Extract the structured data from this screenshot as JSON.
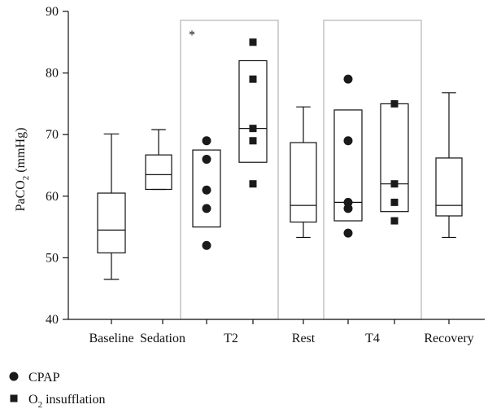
{
  "chart_data": {
    "type": "box",
    "ylabel_main": "PaCO",
    "ylabel_sub": "2",
    "ylabel_unit": " (mmHg)",
    "ylim": [
      40,
      90
    ],
    "yticks": [
      40,
      50,
      60,
      70,
      80,
      90
    ],
    "categories": [
      "Baseline",
      "Sedation",
      "T2",
      "Rest",
      "T4",
      "Recovery"
    ],
    "annotation": "*",
    "boxes": [
      {
        "name": "Baseline",
        "whisker_low": 46.5,
        "q1": 50.8,
        "median": 54.5,
        "q3": 60.5,
        "whisker_high": 70.1
      },
      {
        "name": "Sedation",
        "whisker_low": 61.1,
        "q1": 61.1,
        "median": 63.5,
        "q3": 66.7,
        "whisker_high": 70.8
      },
      {
        "name": "T2-CPAP",
        "whisker_low": null,
        "q1": 55.0,
        "median": null,
        "q3": 67.5,
        "whisker_high": null
      },
      {
        "name": "T2-O2",
        "whisker_low": null,
        "q1": 65.5,
        "median": 71.0,
        "q3": 82.0,
        "whisker_high": null
      },
      {
        "name": "Rest",
        "whisker_low": 53.3,
        "q1": 55.8,
        "median": 58.5,
        "q3": 68.7,
        "whisker_high": 74.5
      },
      {
        "name": "T4-CPAP",
        "whisker_low": null,
        "q1": 56.0,
        "median": 59.0,
        "q3": 74.0,
        "whisker_high": null
      },
      {
        "name": "T4-O2",
        "whisker_low": null,
        "q1": 57.5,
        "median": 62.0,
        "q3": 75.0,
        "whisker_high": null
      },
      {
        "name": "Recovery",
        "whisker_low": 53.3,
        "q1": 56.8,
        "median": 58.5,
        "q3": 66.2,
        "whisker_high": 76.8
      }
    ],
    "series": [
      {
        "name": "CPAP",
        "marker": "circle",
        "points": {
          "T2": [
            52,
            58,
            61,
            66,
            69
          ],
          "T4": [
            54,
            58,
            59,
            69,
            79
          ]
        }
      },
      {
        "name": "O2 insufflation",
        "marker": "square",
        "points": {
          "T2": [
            62,
            69,
            71,
            79,
            85
          ],
          "T4": [
            56,
            59,
            62,
            75
          ]
        }
      }
    ],
    "legend": {
      "cpap": "CPAP",
      "o2_main": "O",
      "o2_sub": "2",
      "o2_rest": " insufflation",
      "placement": "bottom-left"
    },
    "colors": {
      "axis": "#111111",
      "marker": "#1a1a1a",
      "highlight_frame": "#b5b5b5"
    }
  }
}
